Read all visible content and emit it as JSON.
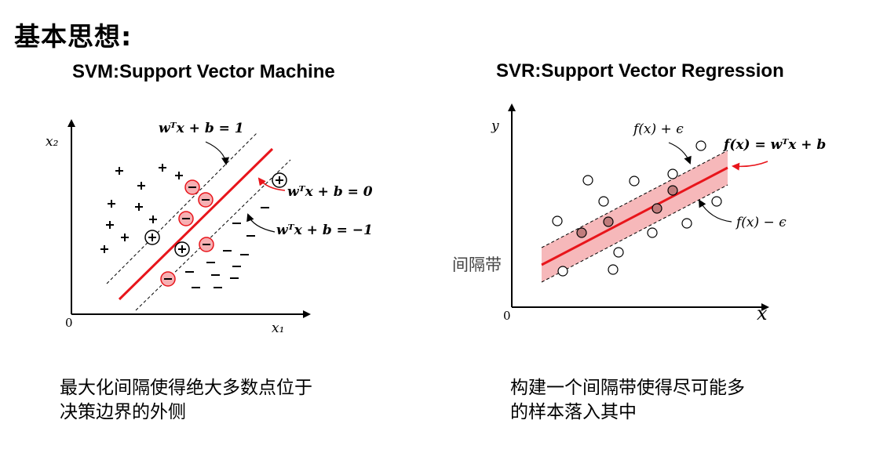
{
  "title": "基本思想:",
  "svm": {
    "subtitle": "SVM:Support Vector Machine",
    "axis_y": "x₂",
    "axis_x": "x₁",
    "origin": "0",
    "upper_margin": "wᵀx + b = 1",
    "hyperplane": "wᵀx + b = 0",
    "lower_margin": "wᵀx + b = −1",
    "caption_line1": "最大化间隔使得绝大多数点位于",
    "caption_line2": "决策边界的外侧",
    "colors": {
      "line": "#e8151b",
      "circle_fill": "#f6b0b3",
      "dash": "#000000"
    }
  },
  "svr": {
    "subtitle": "SVR:Support Vector Regression",
    "axis_y": "y",
    "axis_x": "x",
    "origin": "0",
    "upper_label": "f(x) + ϵ",
    "function_label": "f(x) = wᵀx + b",
    "lower_label": "f(x) − ϵ",
    "band_label": "间隔带",
    "caption_line1": "构建一个间隔带使得尽可能多",
    "caption_line2": "的样本落入其中",
    "colors": {
      "band": "#f6b8ba",
      "line": "#e8151b",
      "point_inside": "#c07c7c",
      "point_outside": "#ffffff"
    }
  }
}
